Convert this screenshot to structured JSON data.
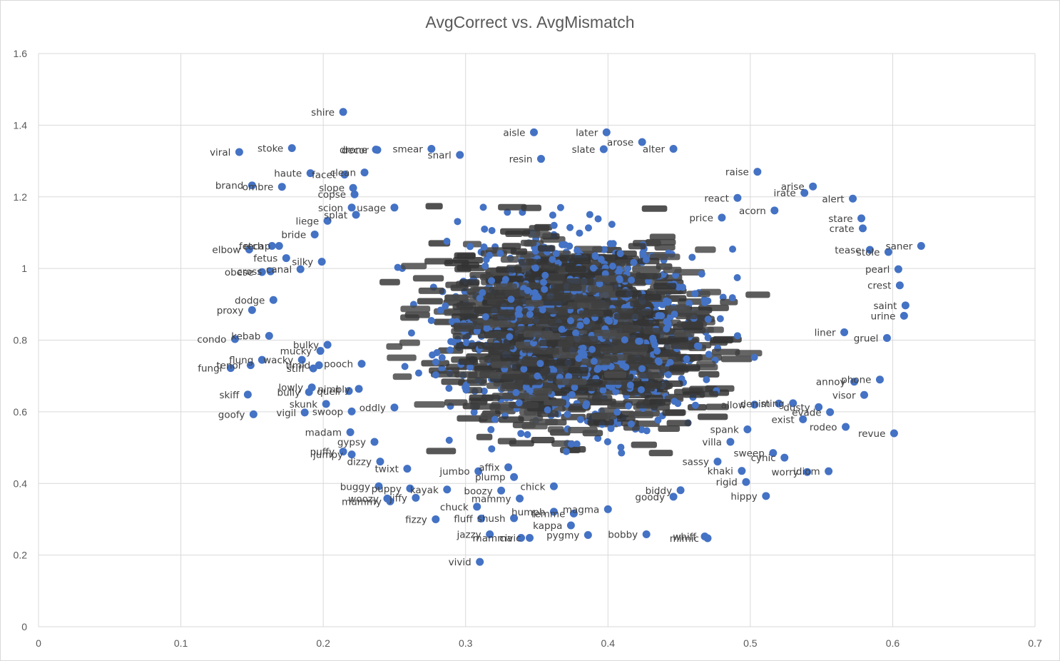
{
  "chart_data": {
    "type": "scatter",
    "title": "AvgCorrect vs. AvgMismatch",
    "xlabel": "",
    "ylabel": "",
    "xlim": [
      0,
      0.7
    ],
    "ylim": [
      0,
      1.6
    ],
    "x_ticks": [
      "0",
      "0.1",
      "0.2",
      "0.3",
      "0.4",
      "0.5",
      "0.6",
      "0.7"
    ],
    "y_ticks": [
      "0",
      "0.2",
      "0.4",
      "0.6",
      "0.8",
      "1",
      "1.2",
      "1.4",
      "1.6"
    ],
    "grid": true,
    "legend": "none",
    "marker_color": "#4472C4",
    "series": [
      {
        "points": [
          {
            "label": "shire",
            "x": 0.214,
            "y": 1.437
          },
          {
            "label": "viral",
            "x": 0.141,
            "y": 1.325
          },
          {
            "label": "stoke",
            "x": 0.178,
            "y": 1.336
          },
          {
            "label": "haute",
            "x": 0.191,
            "y": 1.266
          },
          {
            "label": "brand",
            "x": 0.15,
            "y": 1.232
          },
          {
            "label": "ombre",
            "x": 0.171,
            "y": 1.228
          },
          {
            "label": "facet",
            "x": 0.215,
            "y": 1.262
          },
          {
            "label": "clean",
            "x": 0.229,
            "y": 1.268
          },
          {
            "label": "slope",
            "x": 0.221,
            "y": 1.225
          },
          {
            "label": "copse",
            "x": 0.222,
            "y": 1.207
          },
          {
            "label": "decor",
            "x": 0.238,
            "y": 1.331
          },
          {
            "label": "drone",
            "x": 0.237,
            "y": 1.332
          },
          {
            "label": "smear",
            "x": 0.276,
            "y": 1.334
          },
          {
            "label": "snarl",
            "x": 0.296,
            "y": 1.317
          },
          {
            "label": "resin",
            "x": 0.353,
            "y": 1.306
          },
          {
            "label": "aisle",
            "x": 0.348,
            "y": 1.38
          },
          {
            "label": "later",
            "x": 0.399,
            "y": 1.38
          },
          {
            "label": "arose",
            "x": 0.424,
            "y": 1.353
          },
          {
            "label": "slate",
            "x": 0.397,
            "y": 1.333
          },
          {
            "label": "alter",
            "x": 0.446,
            "y": 1.334
          },
          {
            "label": "raise",
            "x": 0.505,
            "y": 1.27
          },
          {
            "label": "arise",
            "x": 0.544,
            "y": 1.229
          },
          {
            "label": "irate",
            "x": 0.538,
            "y": 1.211
          },
          {
            "label": "alert",
            "x": 0.572,
            "y": 1.195
          },
          {
            "label": "react",
            "x": 0.491,
            "y": 1.197
          },
          {
            "label": "acorn",
            "x": 0.517,
            "y": 1.162
          },
          {
            "label": "price",
            "x": 0.48,
            "y": 1.142
          },
          {
            "label": "stare",
            "x": 0.578,
            "y": 1.14
          },
          {
            "label": "crate",
            "x": 0.579,
            "y": 1.112
          },
          {
            "label": "saner",
            "x": 0.62,
            "y": 1.063
          },
          {
            "label": "tease",
            "x": 0.584,
            "y": 1.052
          },
          {
            "label": "stole",
            "x": 0.597,
            "y": 1.046
          },
          {
            "label": "pearl",
            "x": 0.604,
            "y": 0.998
          },
          {
            "label": "crest",
            "x": 0.605,
            "y": 0.953
          },
          {
            "label": "saint",
            "x": 0.609,
            "y": 0.897
          },
          {
            "label": "urine",
            "x": 0.608,
            "y": 0.868
          },
          {
            "label": "gruel",
            "x": 0.596,
            "y": 0.806
          },
          {
            "label": "liner",
            "x": 0.566,
            "y": 0.822
          },
          {
            "label": "liege",
            "x": 0.203,
            "y": 1.133
          },
          {
            "label": "scion",
            "x": 0.22,
            "y": 1.17
          },
          {
            "label": "splat",
            "x": 0.223,
            "y": 1.15
          },
          {
            "label": "usage",
            "x": 0.25,
            "y": 1.17
          },
          {
            "label": "bride",
            "x": 0.194,
            "y": 1.095
          },
          {
            "label": "fetch",
            "x": 0.164,
            "y": 1.063
          },
          {
            "label": "recap",
            "x": 0.169,
            "y": 1.063
          },
          {
            "label": "elbow",
            "x": 0.148,
            "y": 1.053
          },
          {
            "label": "fetus",
            "x": 0.174,
            "y": 1.029
          },
          {
            "label": "silky",
            "x": 0.199,
            "y": 1.019
          },
          {
            "label": "canal",
            "x": 0.184,
            "y": 0.998
          },
          {
            "label": "obese",
            "x": 0.157,
            "y": 0.99
          },
          {
            "label": "cross",
            "x": 0.163,
            "y": 0.992
          },
          {
            "label": "proxy",
            "x": 0.15,
            "y": 0.884
          },
          {
            "label": "dodge",
            "x": 0.165,
            "y": 0.912
          },
          {
            "label": "condo",
            "x": 0.138,
            "y": 0.803
          },
          {
            "label": "kebab",
            "x": 0.162,
            "y": 0.812
          },
          {
            "label": "flung",
            "x": 0.157,
            "y": 0.745
          },
          {
            "label": "fungi",
            "x": 0.135,
            "y": 0.722
          },
          {
            "label": "tenor",
            "x": 0.149,
            "y": 0.73
          },
          {
            "label": "skiff",
            "x": 0.147,
            "y": 0.648
          },
          {
            "label": "goofy",
            "x": 0.151,
            "y": 0.593
          },
          {
            "label": "lowly",
            "x": 0.192,
            "y": 0.668
          },
          {
            "label": "bully",
            "x": 0.19,
            "y": 0.655
          },
          {
            "label": "vigil",
            "x": 0.187,
            "y": 0.598
          },
          {
            "label": "skunk",
            "x": 0.202,
            "y": 0.622
          },
          {
            "label": "swoop",
            "x": 0.22,
            "y": 0.601
          },
          {
            "label": "madam",
            "x": 0.219,
            "y": 0.543
          },
          {
            "label": "gypsy",
            "x": 0.236,
            "y": 0.516
          },
          {
            "label": "puffy",
            "x": 0.214,
            "y": 0.489
          },
          {
            "label": "jumpy",
            "x": 0.22,
            "y": 0.481
          },
          {
            "label": "dizzy",
            "x": 0.24,
            "y": 0.461
          },
          {
            "label": "twixt",
            "x": 0.259,
            "y": 0.441
          },
          {
            "label": "buggy",
            "x": 0.239,
            "y": 0.392
          },
          {
            "label": "puppy",
            "x": 0.261,
            "y": 0.386
          },
          {
            "label": "woozy",
            "x": 0.245,
            "y": 0.358
          },
          {
            "label": "mummy",
            "x": 0.247,
            "y": 0.35
          },
          {
            "label": "jiffy",
            "x": 0.265,
            "y": 0.36
          },
          {
            "label": "kayak",
            "x": 0.287,
            "y": 0.383
          },
          {
            "label": "fizzy",
            "x": 0.279,
            "y": 0.3
          },
          {
            "label": "fluff",
            "x": 0.311,
            "y": 0.302
          },
          {
            "label": "boozy",
            "x": 0.325,
            "y": 0.38
          },
          {
            "label": "chuck",
            "x": 0.308,
            "y": 0.335
          },
          {
            "label": "mammy",
            "x": 0.338,
            "y": 0.358
          },
          {
            "label": "jazzy",
            "x": 0.317,
            "y": 0.258
          },
          {
            "label": "mamma",
            "x": 0.339,
            "y": 0.248
          },
          {
            "label": "civic",
            "x": 0.345,
            "y": 0.248
          },
          {
            "label": "pygmy",
            "x": 0.386,
            "y": 0.256
          },
          {
            "label": "kappa",
            "x": 0.374,
            "y": 0.283
          },
          {
            "label": "bobby",
            "x": 0.427,
            "y": 0.258
          },
          {
            "label": "whiff",
            "x": 0.468,
            "y": 0.252
          },
          {
            "label": "mimic",
            "x": 0.47,
            "y": 0.247
          },
          {
            "label": "vivid",
            "x": 0.31,
            "y": 0.181
          },
          {
            "label": "hippy",
            "x": 0.511,
            "y": 0.365
          },
          {
            "label": "rigid",
            "x": 0.497,
            "y": 0.404
          },
          {
            "label": "worry",
            "x": 0.54,
            "y": 0.432
          },
          {
            "label": "idiom",
            "x": 0.555,
            "y": 0.434
          },
          {
            "label": "revue",
            "x": 0.601,
            "y": 0.54
          },
          {
            "label": "rodeo",
            "x": 0.567,
            "y": 0.558
          },
          {
            "label": "visor",
            "x": 0.58,
            "y": 0.647
          },
          {
            "label": "phone",
            "x": 0.591,
            "y": 0.69
          },
          {
            "label": "evade",
            "x": 0.556,
            "y": 0.599
          },
          {
            "label": "dusty",
            "x": 0.548,
            "y": 0.613
          },
          {
            "label": "denim",
            "x": 0.52,
            "y": 0.623
          },
          {
            "label": "cynic",
            "x": 0.524,
            "y": 0.472
          },
          {
            "label": "khaki",
            "x": 0.494,
            "y": 0.435
          },
          {
            "label": "sassy",
            "x": 0.477,
            "y": 0.461
          },
          {
            "label": "biddy",
            "x": 0.451,
            "y": 0.381
          },
          {
            "label": "goody",
            "x": 0.446,
            "y": 0.363
          },
          {
            "label": "femme",
            "x": 0.376,
            "y": 0.316
          },
          {
            "label": "magma",
            "x": 0.4,
            "y": 0.328
          },
          {
            "label": "humph",
            "x": 0.362,
            "y": 0.321
          },
          {
            "label": "shush",
            "x": 0.334,
            "y": 0.303
          },
          {
            "label": "jumbo",
            "x": 0.309,
            "y": 0.434
          },
          {
            "label": "affix",
            "x": 0.33,
            "y": 0.445
          },
          {
            "label": "plump",
            "x": 0.334,
            "y": 0.418
          },
          {
            "label": "chick",
            "x": 0.362,
            "y": 0.392
          },
          {
            "label": "villa",
            "x": 0.486,
            "y": 0.516
          },
          {
            "label": "sweep",
            "x": 0.516,
            "y": 0.485
          },
          {
            "label": "spank",
            "x": 0.498,
            "y": 0.551
          },
          {
            "label": "allow",
            "x": 0.503,
            "y": 0.62
          },
          {
            "label": "annoy",
            "x": 0.573,
            "y": 0.684
          },
          {
            "label": "sting",
            "x": 0.53,
            "y": 0.624
          },
          {
            "label": "exist",
            "x": 0.537,
            "y": 0.579
          },
          {
            "label": "oddly",
            "x": 0.25,
            "y": 0.612
          },
          {
            "label": "quell",
            "x": 0.218,
            "y": 0.658
          },
          {
            "label": "nimbly",
            "x": 0.225,
            "y": 0.664
          },
          {
            "label": "wacky",
            "x": 0.185,
            "y": 0.745
          },
          {
            "label": "timid",
            "x": 0.197,
            "y": 0.73
          },
          {
            "label": "stiff",
            "x": 0.193,
            "y": 0.721
          },
          {
            "label": "pooch",
            "x": 0.227,
            "y": 0.734
          },
          {
            "label": "mucky",
            "x": 0.198,
            "y": 0.77
          },
          {
            "label": "bulky",
            "x": 0.203,
            "y": 0.787
          }
        ]
      }
    ]
  }
}
